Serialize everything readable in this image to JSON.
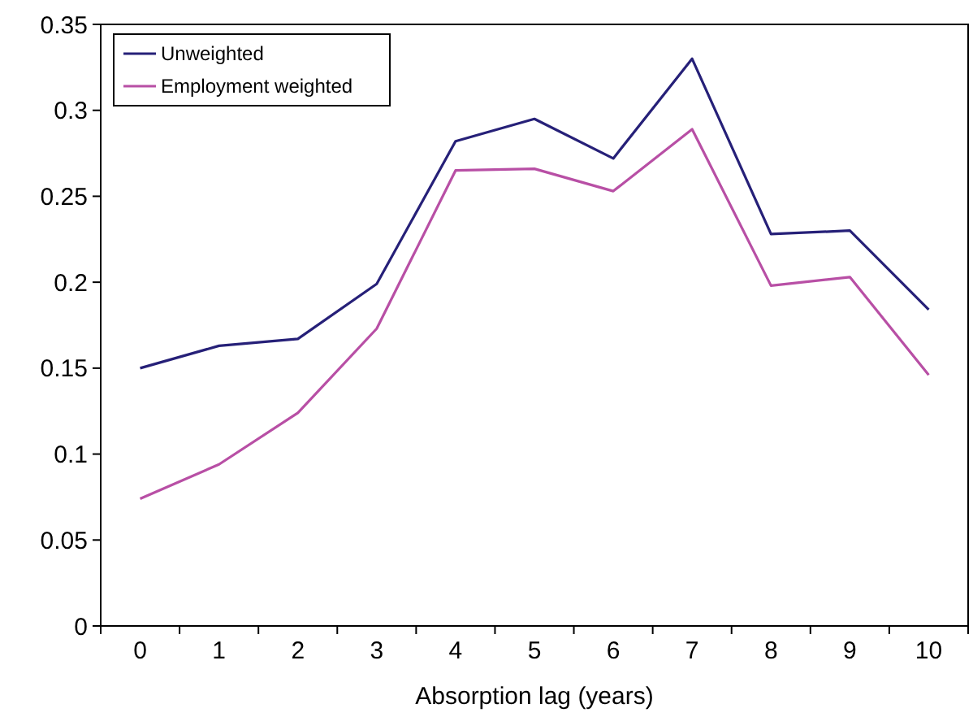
{
  "chart_data": {
    "type": "line",
    "xlabel": "Absorption lag (years)",
    "categories": [
      "0",
      "1",
      "2",
      "3",
      "4",
      "5",
      "6",
      "7",
      "8",
      "9",
      "10"
    ],
    "series": [
      {
        "name": "Unweighted",
        "color": "#262078",
        "values": [
          0.15,
          0.163,
          0.167,
          0.199,
          0.282,
          0.295,
          0.272,
          0.33,
          0.228,
          0.23,
          0.184
        ]
      },
      {
        "name": "Employment weighted",
        "color": "#b84fa5",
        "values": [
          0.074,
          0.094,
          0.124,
          0.173,
          0.265,
          0.266,
          0.253,
          0.289,
          0.198,
          0.203,
          0.146
        ]
      }
    ],
    "ylim": [
      0,
      0.35
    ],
    "yticks": [
      0,
      0.05,
      0.1,
      0.15,
      0.2,
      0.25,
      0.3,
      0.35
    ],
    "grid": false,
    "legend": "top left",
    "marker": "none",
    "line_style": "solid"
  }
}
